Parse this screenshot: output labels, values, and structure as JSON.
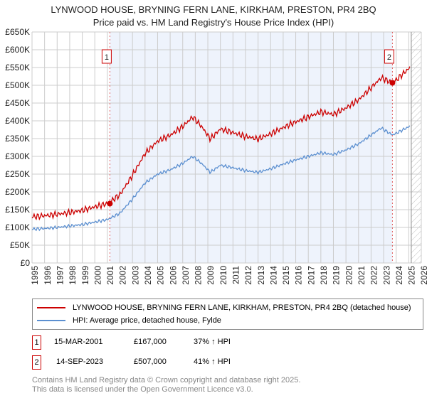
{
  "chart_data": {
    "type": "line",
    "title": "LYNWOOD HOUSE, BRYNING FERN LANE, KIRKHAM, PRESTON, PR4 2BQ",
    "subtitle": "Price paid vs. HM Land Registry's House Price Index (HPI)",
    "xlim": [
      1995,
      2026
    ],
    "ylim": [
      0,
      650000
    ],
    "x_ticks": [
      "1995",
      "1996",
      "1997",
      "1998",
      "1999",
      "2000",
      "2001",
      "2002",
      "2003",
      "2004",
      "2005",
      "2006",
      "2007",
      "2008",
      "2009",
      "2010",
      "2011",
      "2012",
      "2013",
      "2014",
      "2015",
      "2016",
      "2017",
      "2018",
      "2019",
      "2020",
      "2021",
      "2022",
      "2023",
      "2024",
      "2025",
      "2026"
    ],
    "y_ticks": [
      "£0",
      "£50K",
      "£100K",
      "£150K",
      "£200K",
      "£250K",
      "£300K",
      "£350K",
      "£400K",
      "£450K",
      "£500K",
      "£550K",
      "£600K",
      "£650K"
    ],
    "grid": true,
    "series": [
      {
        "name": "LYNWOOD HOUSE, BRYNING FERN LANE, KIRKHAM, PRESTON, PR4 2BQ (detached house)",
        "color": "#cc0000",
        "x": [
          1995,
          1996,
          1997,
          1998,
          1999,
          2000,
          2001,
          2002,
          2003,
          2004,
          2005,
          2006,
          2007,
          2007.8,
          2008.5,
          2009.2,
          2010,
          2011,
          2012,
          2013,
          2014,
          2015,
          2016,
          2017,
          2018,
          2019,
          2020,
          2021,
          2022,
          2022.8,
          2023.7,
          2024,
          2025.1
        ],
        "values": [
          130000,
          133000,
          137000,
          142000,
          148000,
          158000,
          167000,
          192000,
          247000,
          308000,
          343000,
          359000,
          384000,
          411000,
          384000,
          349000,
          377000,
          367000,
          356000,
          349000,
          363000,
          381000,
          397000,
          411000,
          425000,
          418000,
          436000,
          459000,
          493000,
          521000,
          507000,
          515000,
          550000
        ]
      },
      {
        "name": "HPI: Average price, detached house, Fylde",
        "color": "#5b8fd0",
        "x": [
          1995,
          1996,
          1997,
          1998,
          1999,
          2000,
          2001,
          2002,
          2003,
          2004,
          2005,
          2006,
          2007,
          2007.8,
          2008.5,
          2009.2,
          2010,
          2011,
          2012,
          2013,
          2014,
          2015,
          2016,
          2017,
          2018,
          2019,
          2020,
          2021,
          2022,
          2022.8,
          2023.7,
          2024,
          2025.1
        ],
        "values": [
          95000,
          97000,
          100000,
          104000,
          108000,
          115000,
          122000,
          140000,
          180000,
          225000,
          250000,
          262000,
          280000,
          300000,
          280000,
          255000,
          275000,
          268000,
          260000,
          255000,
          265000,
          278000,
          290000,
          300000,
          310000,
          305000,
          318000,
          335000,
          360000,
          380000,
          360000,
          365000,
          385000
        ]
      }
    ],
    "sales": [
      {
        "label": "1",
        "x": 2001.2,
        "value": 167000
      },
      {
        "label": "2",
        "x": 2023.7,
        "value": 507000
      }
    ],
    "hatch_from": 2025.2
  },
  "legend": {
    "red": "LYNWOOD HOUSE, BRYNING FERN LANE, KIRKHAM, PRESTON, PR4 2BQ (detached house)",
    "blue": "HPI: Average price, detached house, Fylde"
  },
  "sales_table": [
    {
      "num": "1",
      "date": "15-MAR-2001",
      "price": "£167,000",
      "hpi": "37% ↑ HPI"
    },
    {
      "num": "2",
      "date": "14-SEP-2023",
      "price": "£507,000",
      "hpi": "41% ↑ HPI"
    }
  ],
  "footer": {
    "line1": "Contains HM Land Registry data © Crown copyright and database right 2025.",
    "line2": "This data is licensed under the Open Government Licence v3.0."
  }
}
